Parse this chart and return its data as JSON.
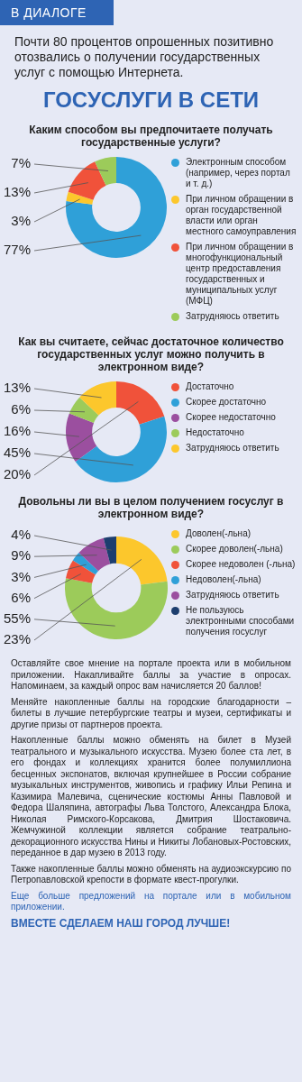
{
  "chart_data": [
    {
      "type": "other",
      "title": "ГОСУСЛУГИ В СЕТИ",
      "annotations": [
        "В ДИАЛОГЕ",
        "Почти 80 процентов опрошенных позитивно отозвались о получении государственных услуг с помощью Интернета."
      ]
    },
    {
      "type": "donut",
      "title": "Каким способом вы предпочитаете получать государственные услуги?",
      "legend": "right",
      "categories": [
        "Электронным способом (например, через портал и т. д.)",
        "При личном обращении в орган государственной власти или орган местного самоуправления",
        "При личном обращении в многофункциональный центр предоставления государственных и муниципальных услуг (МФЦ)",
        "Затрудняюсь ответить"
      ],
      "values": [
        77,
        3,
        13,
        7
      ],
      "value_labels": [
        "77%",
        "3%",
        "13%",
        "7%"
      ],
      "colors": [
        "#2fa0d8",
        "#fcc72c",
        "#f0523a",
        "#9ccb5a"
      ]
    },
    {
      "type": "donut",
      "title": "Как вы считаете, сейчас достаточное количество государственных услуг можно получить в электронном виде?",
      "legend": "right",
      "categories": [
        "Достаточно",
        "Скорее достаточно",
        "Скорее недостаточно",
        "Недостаточно",
        "Затрудняюсь ответить"
      ],
      "values": [
        20,
        45,
        16,
        6,
        13
      ],
      "value_labels": [
        "20%",
        "45%",
        "16%",
        "6%",
        "13%"
      ],
      "colors": [
        "#f0523a",
        "#2fa0d8",
        "#9b4f9f",
        "#9ccb5a",
        "#fcc72c"
      ]
    },
    {
      "type": "donut",
      "title": "Довольны ли вы в целом получением госуслуг в электронном виде?",
      "legend": "right",
      "categories": [
        "Доволен(-льна)",
        "Скорее доволен(-льна)",
        "Скорее недоволен (-льна)",
        "Недоволен(-льна)",
        "Затрудняюсь ответить",
        "Не пользуюсь электронными способами получения госуслуг"
      ],
      "values": [
        23,
        55,
        6,
        3,
        9,
        4
      ],
      "value_labels": [
        "23%",
        "55%",
        "6%",
        "3%",
        "9%",
        "4%"
      ],
      "colors": [
        "#fcc72c",
        "#9ccb5a",
        "#f0523a",
        "#2fa0d8",
        "#9b4f9f",
        "#1d3e6e"
      ]
    },
    {
      "type": "other",
      "annotations": [
        "Оставляйте свое мнение на портале проекта или в мобильном приложении. Накапливайте баллы за участие в опросах. Напоминаем, за каждый опрос вам начисляется 20 баллов!",
        "Меняйте накопленные баллы на городские благодарности – билеты в лучшие петербургские театры и музеи, сертификаты и другие призы от партнеров проекта.",
        "Накопленные баллы можно обменять на билет в Музей театрального и музыкального искусства. Музею более ста лет, в его фондах и коллекциях хранится более полумиллиона бесценных экспонатов, включая крупнейшее в России собрание музыкальных инструментов, живопись и графику Ильи Репина и Казимира Малевича, сценические костюмы Анны Павловой и Федора Шаляпина, автографы Льва Толстого, Александра Блока, Николая Римского-Корсакова, Дмитрия Шостаковича. Жемчужиной коллекции является собрание театрально-декорационного искусства Нины и Никиты Лобановых-Ростовских, переданное в дар музею в 2013 году.",
        "Также накопленные баллы можно обменять на аудиоэкскурсию по Петропавловской крепости в формате квест-прогулки.",
        "Еще больше предложений на портале или в мобильном приложении.",
        "ВМЕСТЕ СДЕЛАЕМ НАШ ГОРОД ЛУЧШЕ!"
      ]
    }
  ]
}
